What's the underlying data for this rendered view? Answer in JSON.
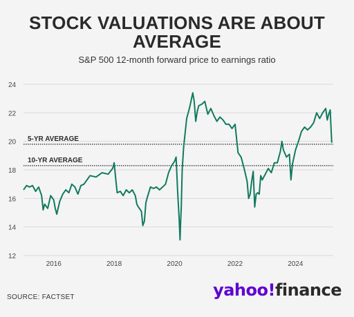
{
  "title": "STOCK VALUATIONS ARE ABOUT AVERAGE",
  "subtitle": "S&P 500 12-month forward price to earnings ratio",
  "source": "SOURCE: FACTSET",
  "logo": {
    "part1": "yahoo!",
    "part2": "finance"
  },
  "colors": {
    "line": "#107a5e",
    "avg": "#333333",
    "grid": "#d9d9d9",
    "text": "#2b2b2b"
  },
  "chart_data": {
    "type": "line",
    "title": "STOCK VALUATIONS ARE ABOUT AVERAGE",
    "subtitle": "S&P 500 12-month forward price to earnings ratio",
    "xlim": [
      2015.0,
      2025.25
    ],
    "ylim": [
      12,
      24
    ],
    "x_ticks": [
      2016,
      2018,
      2020,
      2022,
      2024
    ],
    "y_ticks": [
      12,
      14,
      16,
      18,
      20,
      22,
      24
    ],
    "grid": true,
    "reference_lines": [
      {
        "label": "5-YR AVERAGE",
        "value": 19.8
      },
      {
        "label": "10-YR AVERAGE",
        "value": 18.3
      }
    ],
    "series": [
      {
        "x": [
          2015.0,
          2015.1,
          2015.2,
          2015.3,
          2015.4,
          2015.5,
          2015.6,
          2015.65,
          2015.7,
          2015.8,
          2015.9,
          2016.0,
          2016.05,
          2016.1,
          2016.2,
          2016.3,
          2016.4,
          2016.5,
          2016.6,
          2016.7,
          2016.8,
          2016.9,
          2017.0,
          2017.2,
          2017.4,
          2017.6,
          2017.8,
          2017.95,
          2018.0,
          2018.05,
          2018.1,
          2018.2,
          2018.3,
          2018.4,
          2018.5,
          2018.6,
          2018.7,
          2018.75,
          2018.8,
          2018.9,
          2018.95,
          2019.0,
          2019.05,
          2019.1,
          2019.2,
          2019.3,
          2019.4,
          2019.5,
          2019.6,
          2019.7,
          2019.8,
          2019.9,
          2020.0,
          2020.05,
          2020.1,
          2020.15,
          2020.18,
          2020.2,
          2020.22,
          2020.25,
          2020.3,
          2020.35,
          2020.4,
          2020.5,
          2020.55,
          2020.6,
          2020.65,
          2020.7,
          2020.75,
          2020.8,
          2020.9,
          2021.0,
          2021.1,
          2021.2,
          2021.3,
          2021.4,
          2021.5,
          2021.6,
          2021.7,
          2021.8,
          2021.9,
          2022.0,
          2022.1,
          2022.2,
          2022.3,
          2022.4,
          2022.45,
          2022.5,
          2022.55,
          2022.6,
          2022.65,
          2022.7,
          2022.75,
          2022.8,
          2022.85,
          2022.9,
          2023.0,
          2023.1,
          2023.2,
          2023.3,
          2023.4,
          2023.5,
          2023.55,
          2023.6,
          2023.7,
          2023.8,
          2023.85,
          2023.9,
          2024.0,
          2024.1,
          2024.2,
          2024.3,
          2024.4,
          2024.5,
          2024.6,
          2024.7,
          2024.8,
          2024.9,
          2025.0,
          2025.05,
          2025.1,
          2025.15,
          2025.18,
          2025.2
        ],
        "y": [
          16.6,
          16.9,
          16.8,
          16.9,
          16.5,
          16.8,
          16.2,
          15.2,
          15.6,
          15.3,
          16.2,
          15.9,
          15.3,
          14.9,
          15.8,
          16.3,
          16.6,
          16.4,
          17.0,
          16.8,
          16.3,
          16.9,
          17.0,
          17.6,
          17.5,
          17.8,
          17.7,
          18.1,
          18.5,
          17.4,
          16.4,
          16.5,
          16.2,
          16.6,
          16.4,
          16.6,
          16.2,
          15.6,
          15.4,
          15.1,
          14.1,
          14.4,
          15.7,
          16.1,
          16.8,
          16.7,
          16.8,
          16.6,
          16.8,
          17.0,
          17.8,
          18.3,
          18.6,
          18.9,
          16.5,
          14.6,
          13.1,
          14.4,
          15.4,
          18.0,
          19.6,
          20.6,
          21.6,
          22.4,
          22.9,
          23.4,
          22.8,
          21.4,
          22.1,
          22.5,
          22.6,
          22.8,
          21.9,
          22.3,
          21.8,
          21.4,
          21.7,
          21.5,
          21.2,
          21.2,
          20.9,
          21.2,
          19.2,
          18.9,
          18.1,
          17.2,
          16.0,
          16.3,
          17.2,
          17.9,
          15.4,
          16.3,
          16.4,
          16.3,
          17.6,
          17.3,
          17.7,
          18.1,
          17.8,
          18.5,
          18.5,
          19.3,
          20.0,
          19.4,
          18.9,
          19.1,
          17.3,
          18.4,
          19.4,
          20.0,
          20.7,
          21.0,
          20.8,
          21.0,
          21.3,
          22.0,
          21.6,
          22.0,
          22.3,
          21.5,
          21.9,
          22.2,
          20.8,
          19.9
        ]
      }
    ]
  }
}
